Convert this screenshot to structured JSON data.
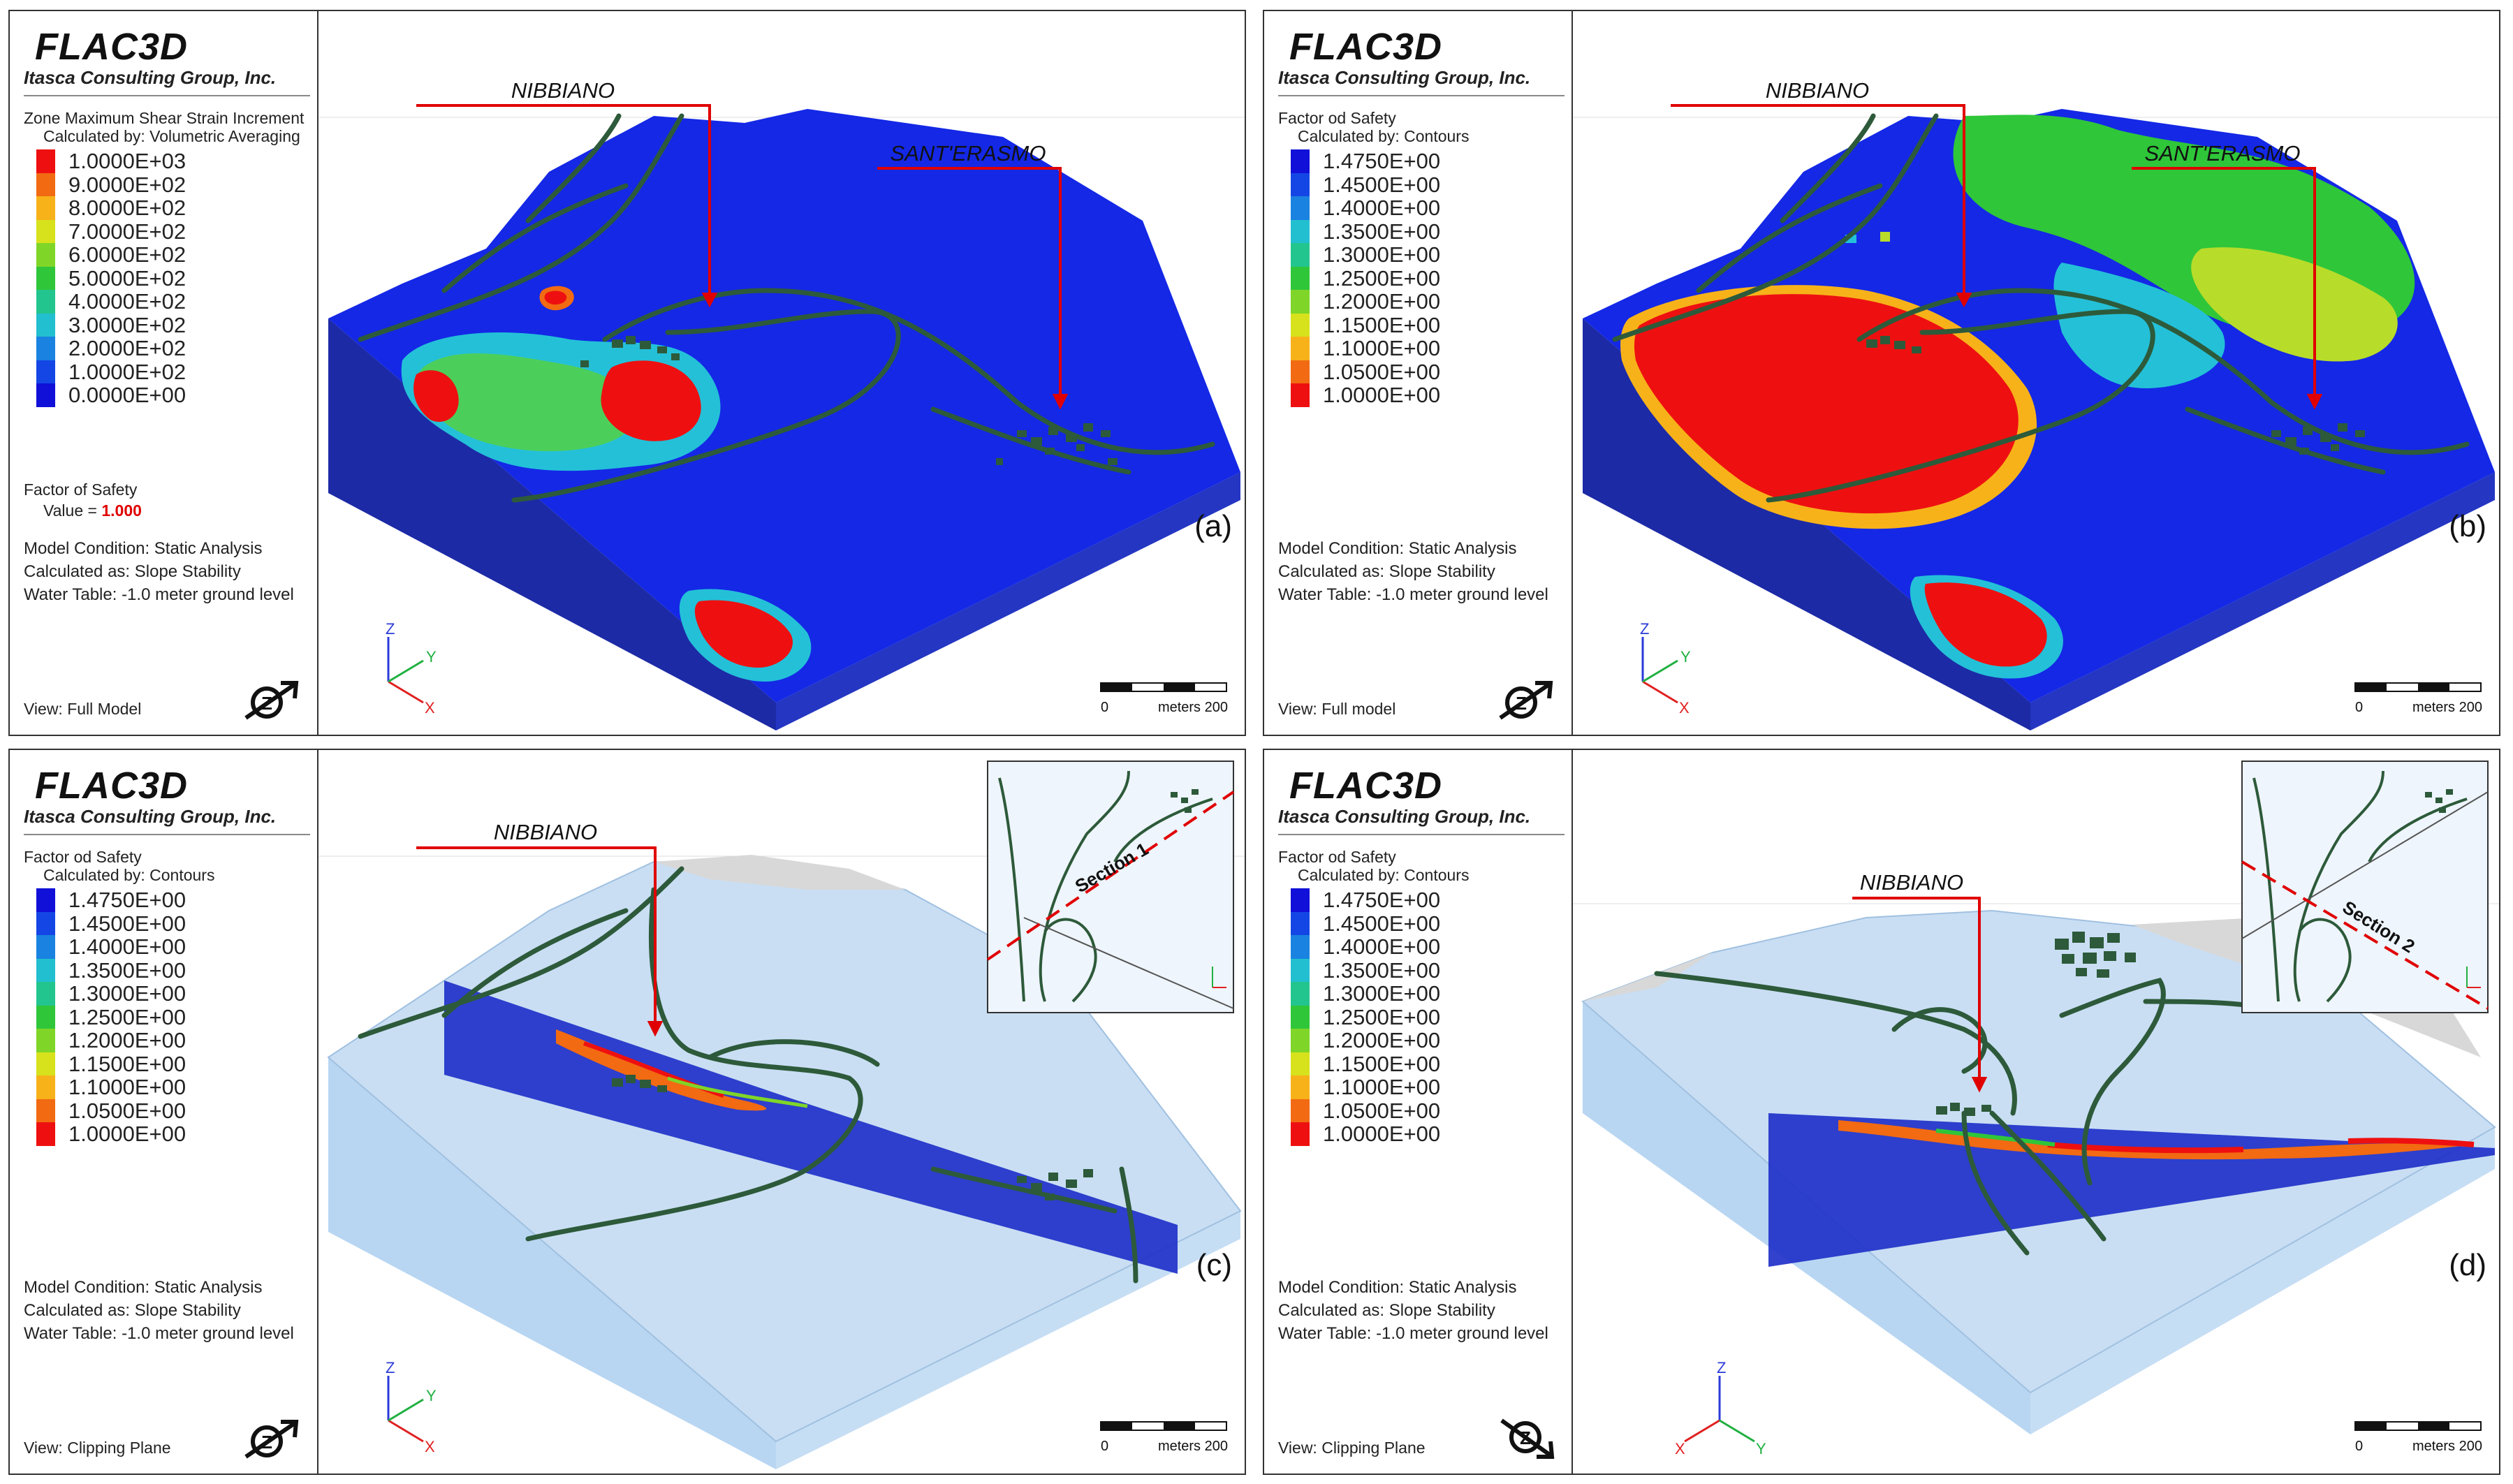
{
  "brand": "FLAC3D",
  "company": "Itasca Consulting Group, Inc.",
  "common": {
    "model_condition": "Model Condition: Static Analysis",
    "calculated_as": "Calculated as: Slope Stability",
    "water_table": "Water Table: -1.0 meter ground level",
    "scale_zero": "0",
    "scale_max": "meters 200",
    "axis_x": "X",
    "axis_y": "Y",
    "axis_z": "Z",
    "nibbiano": "NIBBIANO",
    "santerasmo": "SANT'ERASMO"
  },
  "panels": [
    {
      "letter": "(a)",
      "quantity": "Zone Maximum Shear Strain Increment",
      "method": "Calculated by: Volumetric Averaging",
      "legend": [
        {
          "label": "1.0000E+03",
          "color": "#ee1010"
        },
        {
          "label": "9.0000E+02",
          "color": "#f26a12"
        },
        {
          "label": "8.0000E+02",
          "color": "#f7b21a"
        },
        {
          "label": "7.0000E+02",
          "color": "#d7e21c"
        },
        {
          "label": "6.0000E+02",
          "color": "#7fd628"
        },
        {
          "label": "5.0000E+02",
          "color": "#2fc63a"
        },
        {
          "label": "4.0000E+02",
          "color": "#23c58f"
        },
        {
          "label": "3.0000E+02",
          "color": "#22bfd0"
        },
        {
          "label": "2.0000E+02",
          "color": "#1a82e0"
        },
        {
          "label": "1.0000E+02",
          "color": "#1446e6"
        },
        {
          "label": "0.0000E+00",
          "color": "#1010d8"
        }
      ],
      "fos_title": "Factor of Safety",
      "fos_value_prefix": "Value = ",
      "fos_value": "1.000",
      "view": "View: Full Model"
    },
    {
      "letter": "(b)",
      "quantity": "Factor od Safety",
      "method": "Calculated by: Contours",
      "legend": [
        {
          "label": "1.4750E+00",
          "color": "#1010d8"
        },
        {
          "label": "1.4500E+00",
          "color": "#1446e6"
        },
        {
          "label": "1.4000E+00",
          "color": "#1a82e0"
        },
        {
          "label": "1.3500E+00",
          "color": "#22bfd0"
        },
        {
          "label": "1.3000E+00",
          "color": "#23c58f"
        },
        {
          "label": "1.2500E+00",
          "color": "#2fc63a"
        },
        {
          "label": "1.2000E+00",
          "color": "#7fd628"
        },
        {
          "label": "1.1500E+00",
          "color": "#d7e21c"
        },
        {
          "label": "1.1000E+00",
          "color": "#f7b21a"
        },
        {
          "label": "1.0500E+00",
          "color": "#f26a12"
        },
        {
          "label": "1.0000E+00",
          "color": "#ee1010"
        }
      ],
      "view": "View: Full model"
    },
    {
      "letter": "(c)",
      "quantity": "Factor od Safety",
      "method": "Calculated by: Contours",
      "legend": [
        {
          "label": "1.4750E+00",
          "color": "#1010d8"
        },
        {
          "label": "1.4500E+00",
          "color": "#1446e6"
        },
        {
          "label": "1.4000E+00",
          "color": "#1a82e0"
        },
        {
          "label": "1.3500E+00",
          "color": "#22bfd0"
        },
        {
          "label": "1.3000E+00",
          "color": "#23c58f"
        },
        {
          "label": "1.2500E+00",
          "color": "#2fc63a"
        },
        {
          "label": "1.2000E+00",
          "color": "#7fd628"
        },
        {
          "label": "1.1500E+00",
          "color": "#d7e21c"
        },
        {
          "label": "1.1000E+00",
          "color": "#f7b21a"
        },
        {
          "label": "1.0500E+00",
          "color": "#f26a12"
        },
        {
          "label": "1.0000E+00",
          "color": "#ee1010"
        }
      ],
      "view": "View: Clipping Plane",
      "section": "Section 1"
    },
    {
      "letter": "(d)",
      "quantity": "Factor od Safety",
      "method": "Calculated by: Contours",
      "legend": [
        {
          "label": "1.4750E+00",
          "color": "#1010d8"
        },
        {
          "label": "1.4500E+00",
          "color": "#1446e6"
        },
        {
          "label": "1.4000E+00",
          "color": "#1a82e0"
        },
        {
          "label": "1.3500E+00",
          "color": "#22bfd0"
        },
        {
          "label": "1.3000E+00",
          "color": "#23c58f"
        },
        {
          "label": "1.2500E+00",
          "color": "#2fc63a"
        },
        {
          "label": "1.2000E+00",
          "color": "#7fd628"
        },
        {
          "label": "1.1500E+00",
          "color": "#d7e21c"
        },
        {
          "label": "1.1000E+00",
          "color": "#f7b21a"
        },
        {
          "label": "1.0500E+00",
          "color": "#f26a12"
        },
        {
          "label": "1.0000E+00",
          "color": "#ee1010"
        }
      ],
      "view": "View: Clipping Plane",
      "section": "Section 2"
    }
  ]
}
